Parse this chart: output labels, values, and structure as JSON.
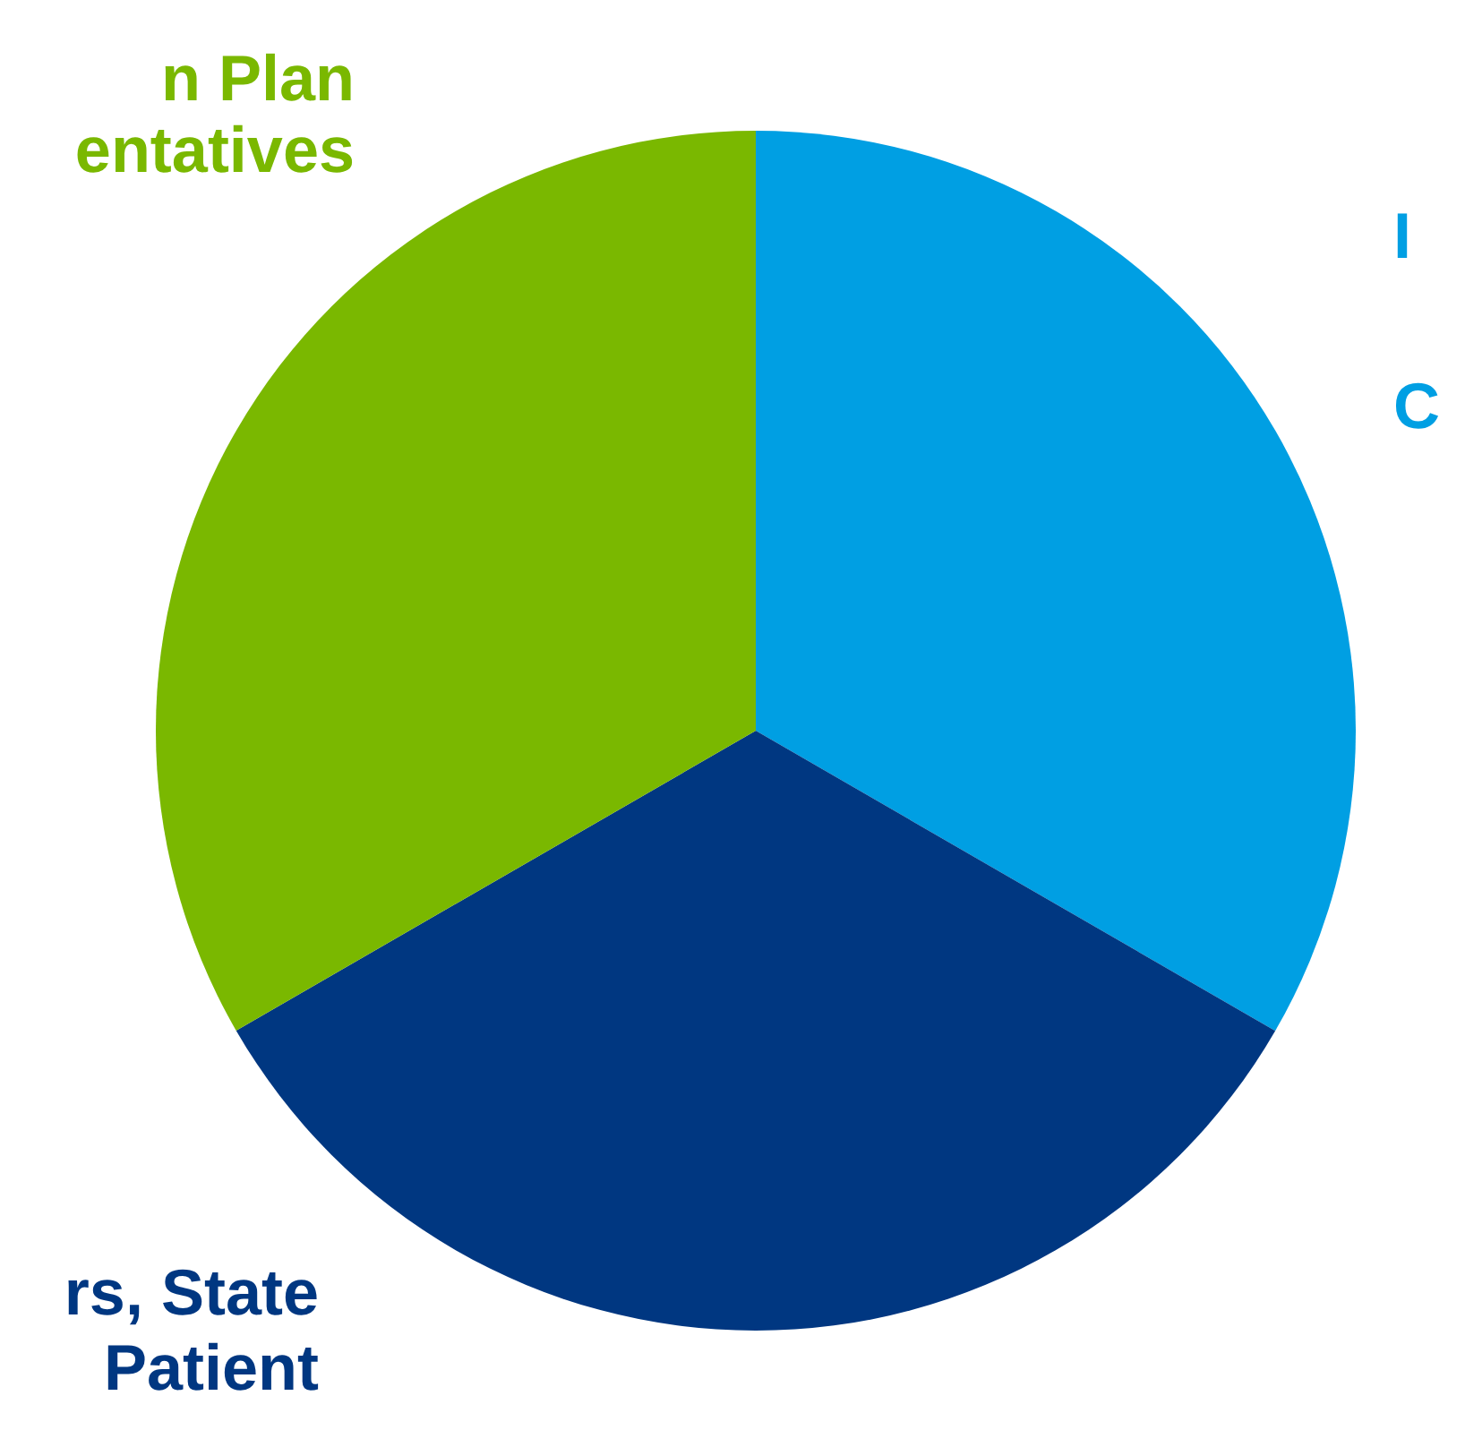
{
  "chart_data": {
    "type": "pie",
    "categories": [
      "I\nC",
      "rs, State\nPatient",
      "n Plan\nentatives"
    ],
    "values": [
      33.34,
      33.33,
      33.33
    ],
    "colors": [
      "#009fe3",
      "#003781",
      "#7ab800"
    ],
    "legend": false
  }
}
